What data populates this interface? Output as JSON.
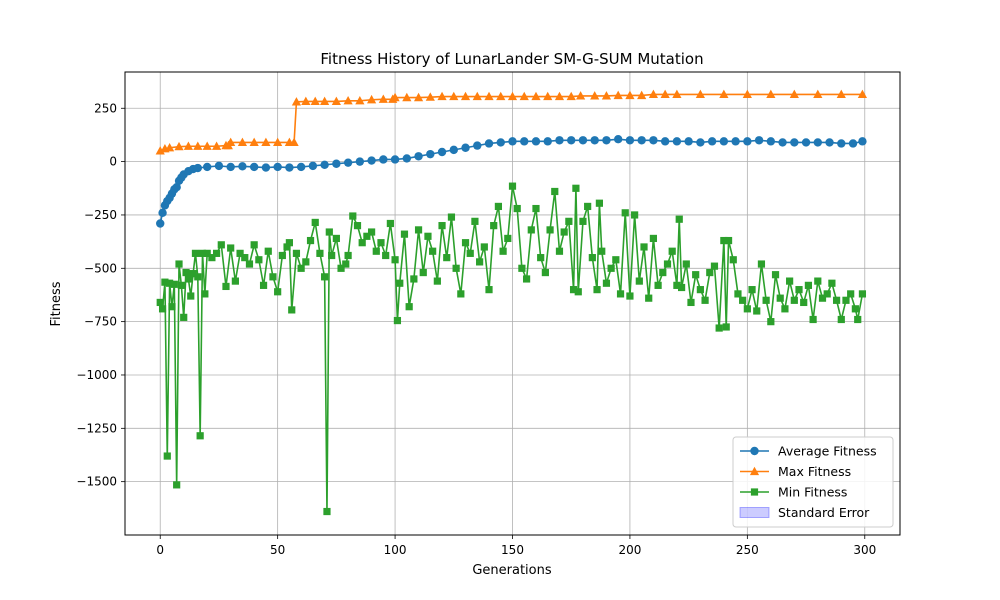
{
  "chart_data": {
    "type": "line",
    "title": "Fitness History of LunarLander SM-G-SUM Mutation",
    "xlabel": "Generations",
    "ylabel": "Fitness",
    "xlim": [
      -15,
      315
    ],
    "ylim": [
      -1750,
      420
    ],
    "xticks": [
      0,
      50,
      100,
      150,
      200,
      250,
      300
    ],
    "yticks": [
      -1500,
      -1250,
      -1000,
      -750,
      -500,
      -250,
      0,
      250
    ],
    "grid": true,
    "legend_position": "lower-right",
    "legend": [
      {
        "label": "Average Fitness",
        "marker": "circle",
        "color": "#1f77b4"
      },
      {
        "label": "Max Fitness",
        "marker": "triangle",
        "color": "#ff7f0e"
      },
      {
        "label": "Min Fitness",
        "marker": "square",
        "color": "#2ca02c"
      },
      {
        "label": "Standard Error",
        "marker": "patch",
        "color": "#0000ff"
      }
    ],
    "series": [
      {
        "name": "Average Fitness",
        "color": "#1f77b4",
        "marker": "circle",
        "points": [
          [
            0,
            -290
          ],
          [
            1,
            -240
          ],
          [
            2,
            -205
          ],
          [
            3,
            -185
          ],
          [
            4,
            -170
          ],
          [
            5,
            -150
          ],
          [
            6,
            -130
          ],
          [
            7,
            -120
          ],
          [
            8,
            -90
          ],
          [
            9,
            -75
          ],
          [
            10,
            -60
          ],
          [
            12,
            -45
          ],
          [
            14,
            -35
          ],
          [
            16,
            -30
          ],
          [
            20,
            -25
          ],
          [
            25,
            -20
          ],
          [
            30,
            -25
          ],
          [
            35,
            -22
          ],
          [
            40,
            -25
          ],
          [
            45,
            -28
          ],
          [
            50,
            -25
          ],
          [
            55,
            -28
          ],
          [
            60,
            -25
          ],
          [
            65,
            -20
          ],
          [
            70,
            -15
          ],
          [
            75,
            -10
          ],
          [
            80,
            -5
          ],
          [
            85,
            0
          ],
          [
            90,
            5
          ],
          [
            95,
            10
          ],
          [
            100,
            10
          ],
          [
            105,
            15
          ],
          [
            110,
            25
          ],
          [
            115,
            35
          ],
          [
            120,
            45
          ],
          [
            125,
            55
          ],
          [
            130,
            65
          ],
          [
            135,
            75
          ],
          [
            140,
            85
          ],
          [
            145,
            90
          ],
          [
            150,
            95
          ],
          [
            155,
            95
          ],
          [
            160,
            95
          ],
          [
            165,
            95
          ],
          [
            170,
            100
          ],
          [
            175,
            100
          ],
          [
            180,
            100
          ],
          [
            185,
            100
          ],
          [
            190,
            100
          ],
          [
            195,
            105
          ],
          [
            200,
            100
          ],
          [
            205,
            100
          ],
          [
            210,
            100
          ],
          [
            215,
            95
          ],
          [
            220,
            95
          ],
          [
            225,
            95
          ],
          [
            230,
            90
          ],
          [
            235,
            95
          ],
          [
            240,
            95
          ],
          [
            245,
            95
          ],
          [
            250,
            95
          ],
          [
            255,
            100
          ],
          [
            260,
            95
          ],
          [
            265,
            90
          ],
          [
            270,
            90
          ],
          [
            275,
            90
          ],
          [
            280,
            90
          ],
          [
            285,
            90
          ],
          [
            290,
            85
          ],
          [
            295,
            85
          ],
          [
            299,
            95
          ]
        ]
      },
      {
        "name": "Max Fitness",
        "color": "#ff7f0e",
        "marker": "triangle",
        "points": [
          [
            0,
            50
          ],
          [
            2,
            60
          ],
          [
            4,
            65
          ],
          [
            8,
            70
          ],
          [
            12,
            72
          ],
          [
            16,
            72
          ],
          [
            20,
            72
          ],
          [
            24,
            72
          ],
          [
            28,
            75
          ],
          [
            29,
            75
          ],
          [
            30,
            90
          ],
          [
            35,
            90
          ],
          [
            40,
            90
          ],
          [
            45,
            90
          ],
          [
            50,
            90
          ],
          [
            55,
            90
          ],
          [
            57,
            90
          ],
          [
            58,
            280
          ],
          [
            62,
            282
          ],
          [
            66,
            282
          ],
          [
            70,
            282
          ],
          [
            75,
            282
          ],
          [
            80,
            285
          ],
          [
            85,
            285
          ],
          [
            90,
            290
          ],
          [
            95,
            292
          ],
          [
            99,
            292
          ],
          [
            100,
            300
          ],
          [
            105,
            300
          ],
          [
            110,
            300
          ],
          [
            115,
            302
          ],
          [
            120,
            305
          ],
          [
            125,
            305
          ],
          [
            130,
            305
          ],
          [
            135,
            305
          ],
          [
            140,
            305
          ],
          [
            145,
            305
          ],
          [
            150,
            305
          ],
          [
            155,
            305
          ],
          [
            160,
            305
          ],
          [
            165,
            305
          ],
          [
            170,
            305
          ],
          [
            175,
            305
          ],
          [
            179,
            308
          ],
          [
            185,
            308
          ],
          [
            190,
            308
          ],
          [
            195,
            310
          ],
          [
            200,
            310
          ],
          [
            205,
            310
          ],
          [
            210,
            315
          ],
          [
            215,
            315
          ],
          [
            220,
            315
          ],
          [
            230,
            315
          ],
          [
            240,
            315
          ],
          [
            250,
            315
          ],
          [
            260,
            315
          ],
          [
            270,
            315
          ],
          [
            280,
            315
          ],
          [
            290,
            315
          ],
          [
            299,
            315
          ]
        ]
      },
      {
        "name": "Min Fitness",
        "color": "#2ca02c",
        "marker": "square",
        "points": [
          [
            0,
            -660
          ],
          [
            1,
            -690
          ],
          [
            2,
            -565
          ],
          [
            3,
            -1380
          ],
          [
            4,
            -570
          ],
          [
            5,
            -680
          ],
          [
            6,
            -575
          ],
          [
            7,
            -1515
          ],
          [
            8,
            -480
          ],
          [
            9,
            -580
          ],
          [
            10,
            -730
          ],
          [
            11,
            -520
          ],
          [
            12,
            -550
          ],
          [
            13,
            -630
          ],
          [
            14,
            -525
          ],
          [
            15,
            -430
          ],
          [
            16,
            -540
          ],
          [
            17,
            -1285
          ],
          [
            18,
            -430
          ],
          [
            19,
            -620
          ],
          [
            20,
            -430
          ],
          [
            22,
            -450
          ],
          [
            24,
            -430
          ],
          [
            26,
            -390
          ],
          [
            28,
            -585
          ],
          [
            30,
            -405
          ],
          [
            32,
            -560
          ],
          [
            34,
            -430
          ],
          [
            36,
            -450
          ],
          [
            38,
            -480
          ],
          [
            40,
            -390
          ],
          [
            42,
            -460
          ],
          [
            44,
            -580
          ],
          [
            46,
            -420
          ],
          [
            48,
            -540
          ],
          [
            50,
            -610
          ],
          [
            52,
            -440
          ],
          [
            54,
            -400
          ],
          [
            55,
            -380
          ],
          [
            56,
            -695
          ],
          [
            58,
            -430
          ],
          [
            60,
            -500
          ],
          [
            62,
            -470
          ],
          [
            64,
            -370
          ],
          [
            66,
            -285
          ],
          [
            68,
            -430
          ],
          [
            70,
            -540
          ],
          [
            71,
            -1640
          ],
          [
            72,
            -330
          ],
          [
            73,
            -440
          ],
          [
            75,
            -360
          ],
          [
            77,
            -500
          ],
          [
            79,
            -480
          ],
          [
            80,
            -440
          ],
          [
            82,
            -255
          ],
          [
            84,
            -300
          ],
          [
            86,
            -380
          ],
          [
            88,
            -350
          ],
          [
            90,
            -330
          ],
          [
            92,
            -420
          ],
          [
            94,
            -380
          ],
          [
            96,
            -440
          ],
          [
            98,
            -290
          ],
          [
            100,
            -460
          ],
          [
            101,
            -745
          ],
          [
            102,
            -570
          ],
          [
            104,
            -340
          ],
          [
            106,
            -680
          ],
          [
            108,
            -550
          ],
          [
            110,
            -320
          ],
          [
            112,
            -520
          ],
          [
            114,
            -350
          ],
          [
            116,
            -420
          ],
          [
            118,
            -560
          ],
          [
            120,
            -300
          ],
          [
            122,
            -450
          ],
          [
            124,
            -260
          ],
          [
            126,
            -500
          ],
          [
            128,
            -620
          ],
          [
            130,
            -380
          ],
          [
            132,
            -430
          ],
          [
            134,
            -280
          ],
          [
            136,
            -470
          ],
          [
            138,
            -400
          ],
          [
            140,
            -600
          ],
          [
            142,
            -300
          ],
          [
            144,
            -210
          ],
          [
            146,
            -420
          ],
          [
            148,
            -360
          ],
          [
            150,
            -115
          ],
          [
            152,
            -220
          ],
          [
            154,
            -500
          ],
          [
            156,
            -550
          ],
          [
            158,
            -320
          ],
          [
            160,
            -220
          ],
          [
            162,
            -450
          ],
          [
            164,
            -520
          ],
          [
            166,
            -320
          ],
          [
            168,
            -140
          ],
          [
            170,
            -420
          ],
          [
            172,
            -330
          ],
          [
            174,
            -280
          ],
          [
            176,
            -600
          ],
          [
            177,
            -125
          ],
          [
            178,
            -610
          ],
          [
            180,
            -280
          ],
          [
            182,
            -210
          ],
          [
            184,
            -450
          ],
          [
            186,
            -600
          ],
          [
            187,
            -195
          ],
          [
            188,
            -420
          ],
          [
            190,
            -570
          ],
          [
            192,
            -500
          ],
          [
            194,
            -460
          ],
          [
            196,
            -620
          ],
          [
            198,
            -240
          ],
          [
            200,
            -630
          ],
          [
            202,
            -250
          ],
          [
            204,
            -560
          ],
          [
            206,
            -400
          ],
          [
            208,
            -640
          ],
          [
            210,
            -360
          ],
          [
            212,
            -580
          ],
          [
            214,
            -520
          ],
          [
            216,
            -480
          ],
          [
            218,
            -420
          ],
          [
            220,
            -580
          ],
          [
            221,
            -270
          ],
          [
            222,
            -590
          ],
          [
            224,
            -480
          ],
          [
            226,
            -660
          ],
          [
            228,
            -530
          ],
          [
            230,
            -600
          ],
          [
            232,
            -650
          ],
          [
            234,
            -520
          ],
          [
            236,
            -490
          ],
          [
            238,
            -780
          ],
          [
            240,
            -370
          ],
          [
            241,
            -775
          ],
          [
            242,
            -370
          ],
          [
            244,
            -460
          ],
          [
            246,
            -620
          ],
          [
            248,
            -650
          ],
          [
            250,
            -690
          ],
          [
            252,
            -600
          ],
          [
            254,
            -700
          ],
          [
            256,
            -480
          ],
          [
            258,
            -650
          ],
          [
            260,
            -750
          ],
          [
            262,
            -530
          ],
          [
            264,
            -640
          ],
          [
            266,
            -690
          ],
          [
            268,
            -560
          ],
          [
            270,
            -650
          ],
          [
            272,
            -600
          ],
          [
            274,
            -660
          ],
          [
            276,
            -580
          ],
          [
            278,
            -740
          ],
          [
            280,
            -560
          ],
          [
            282,
            -640
          ],
          [
            284,
            -620
          ],
          [
            286,
            -570
          ],
          [
            288,
            -650
          ],
          [
            290,
            -740
          ],
          [
            292,
            -650
          ],
          [
            294,
            -620
          ],
          [
            296,
            -690
          ],
          [
            297,
            -740
          ],
          [
            299,
            -620
          ]
        ]
      }
    ]
  }
}
